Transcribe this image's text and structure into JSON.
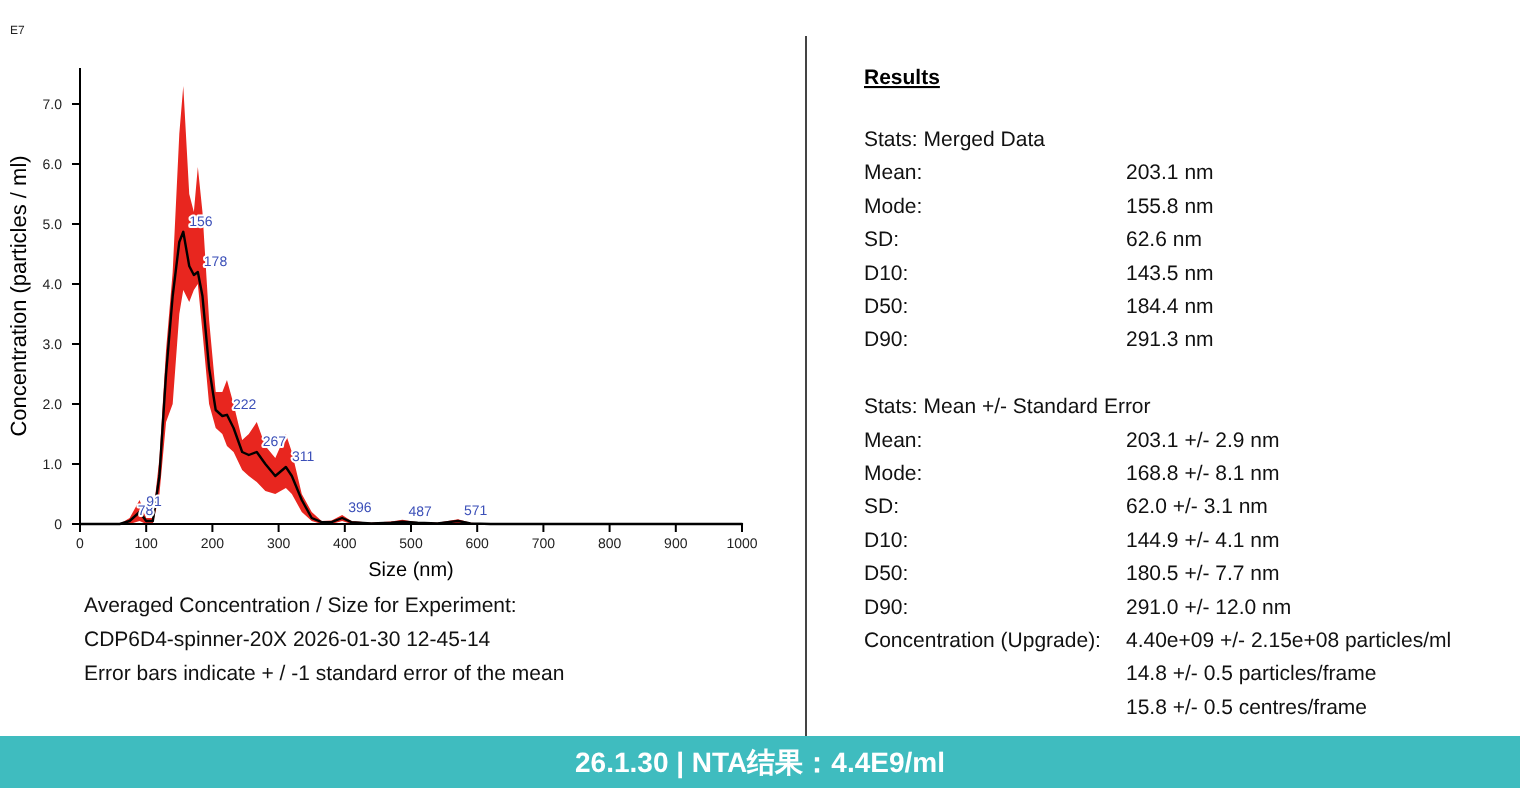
{
  "chart_data": [
    {
      "type": "line",
      "title": "26.1.30  |  NTA结果：4.4E9/ml",
      "xlabel": "Size (nm)",
      "ylabel": "Concentration (particles / ml)",
      "xlim": [
        0,
        1000
      ],
      "ylim": [
        0,
        7.6
      ],
      "xticks": [
        0,
        100,
        200,
        300,
        400,
        500,
        600,
        700,
        800,
        900,
        1000
      ],
      "yticks": [
        0,
        {
          "value": 1,
          "label": "1.0"
        },
        {
          "value": 2,
          "label": "2.0"
        },
        {
          "value": 3,
          "label": "3.0"
        },
        {
          "value": 4,
          "label": "4.0"
        },
        {
          "value": 5,
          "label": "5.0"
        },
        {
          "value": 6,
          "label": "6.0"
        },
        {
          "value": 7,
          "label": "7.0"
        }
      ],
      "series": [
        {
          "color": "#000000",
          "x": [
            0,
            60,
            75,
            90,
            100,
            110,
            120,
            130,
            140,
            150,
            156,
            165,
            172,
            178,
            185,
            195,
            205,
            215,
            222,
            232,
            245,
            255,
            267,
            280,
            295,
            311,
            320,
            335,
            350,
            365,
            380,
            396,
            410,
            440,
            470,
            487,
            510,
            540,
            571,
            590,
            620,
            1000
          ],
          "values": [
            0,
            0,
            0.05,
            0.2,
            0.05,
            0.05,
            0.8,
            2.5,
            3.8,
            4.7,
            4.87,
            4.3,
            4.15,
            4.2,
            3.8,
            2.6,
            1.9,
            1.8,
            1.82,
            1.6,
            1.2,
            1.15,
            1.2,
            1.0,
            0.8,
            0.95,
            0.8,
            0.4,
            0.1,
            0.03,
            0.03,
            0.1,
            0.03,
            0.01,
            0.02,
            0.04,
            0.02,
            0.01,
            0.05,
            0.01,
            0,
            0
          ],
          "lower": [
            0,
            0,
            0,
            0.05,
            0,
            0,
            0.5,
            1.7,
            2.0,
            3.5,
            3.9,
            3.7,
            3.9,
            4.0,
            3.2,
            2.0,
            1.6,
            1.5,
            1.3,
            1.2,
            0.9,
            0.8,
            0.7,
            0.55,
            0.5,
            0.6,
            0.5,
            0.2,
            0.05,
            0,
            0,
            0.05,
            0,
            0,
            0,
            0.01,
            0,
            0,
            0.01,
            0,
            0,
            0
          ],
          "upper": [
            0,
            0,
            0.1,
            0.4,
            0.1,
            0.1,
            1.1,
            2.9,
            4.2,
            6.5,
            7.3,
            5.5,
            5.2,
            5.95,
            5.2,
            3.4,
            2.2,
            2.2,
            2.4,
            2.0,
            1.4,
            1.5,
            1.7,
            1.3,
            1.1,
            1.5,
            1.2,
            0.5,
            0.2,
            0.05,
            0.06,
            0.15,
            0.05,
            0.02,
            0.04,
            0.07,
            0.03,
            0.02,
            0.08,
            0.02,
            0,
            0
          ]
        }
      ],
      "annotations": [
        "E7",
        {
          "text": "78",
          "x": 78,
          "y": 0.05
        },
        {
          "text": "91",
          "x": 91,
          "y": 0.2
        },
        {
          "text": "156",
          "x": 156,
          "y": 4.87
        },
        {
          "text": "178",
          "x": 178,
          "y": 4.2
        },
        {
          "text": "222",
          "x": 222,
          "y": 1.82
        },
        {
          "text": "267",
          "x": 267,
          "y": 1.2
        },
        {
          "text": "311",
          "x": 311,
          "y": 0.95
        },
        {
          "text": "396",
          "x": 396,
          "y": 0.1
        },
        {
          "text": "487",
          "x": 487,
          "y": 0.04
        },
        {
          "text": "571",
          "x": 571,
          "y": 0.05
        },
        "Averaged Concentration / Size for Experiment:",
        "CDP6D4-spinner-20X 2026-01-30 12-45-14",
        "Error bars indicate + / -1 standard error of the mean"
      ]
    },
    {
      "type": "other",
      "title": "Results",
      "annotations": [
        "Stats: Merged Data",
        "Mean:",
        "203.1 nm",
        "Mode:",
        "155.8 nm",
        "SD:",
        "62.6 nm",
        "D10:",
        "143.5 nm",
        "D50:",
        "184.4 nm",
        "D90:",
        "291.3 nm",
        "Stats: Mean +/- Standard Error",
        "Mean:",
        "203.1 +/- 2.9 nm",
        "Mode:",
        "168.8 +/- 8.1 nm",
        "SD:",
        "62.0 +/- 3.1 nm",
        "D10:",
        "144.9 +/- 4.1 nm",
        "D50:",
        "180.5 +/- 7.7 nm",
        "D90:",
        "291.0 +/- 12.0 nm",
        "Concentration (Upgrade):",
        "4.40e+09 +/- 2.15e+08 particles/ml",
        "14.8 +/- 0.5 particles/frame",
        "15.8 +/- 0.5 centres/frame"
      ]
    }
  ]
}
